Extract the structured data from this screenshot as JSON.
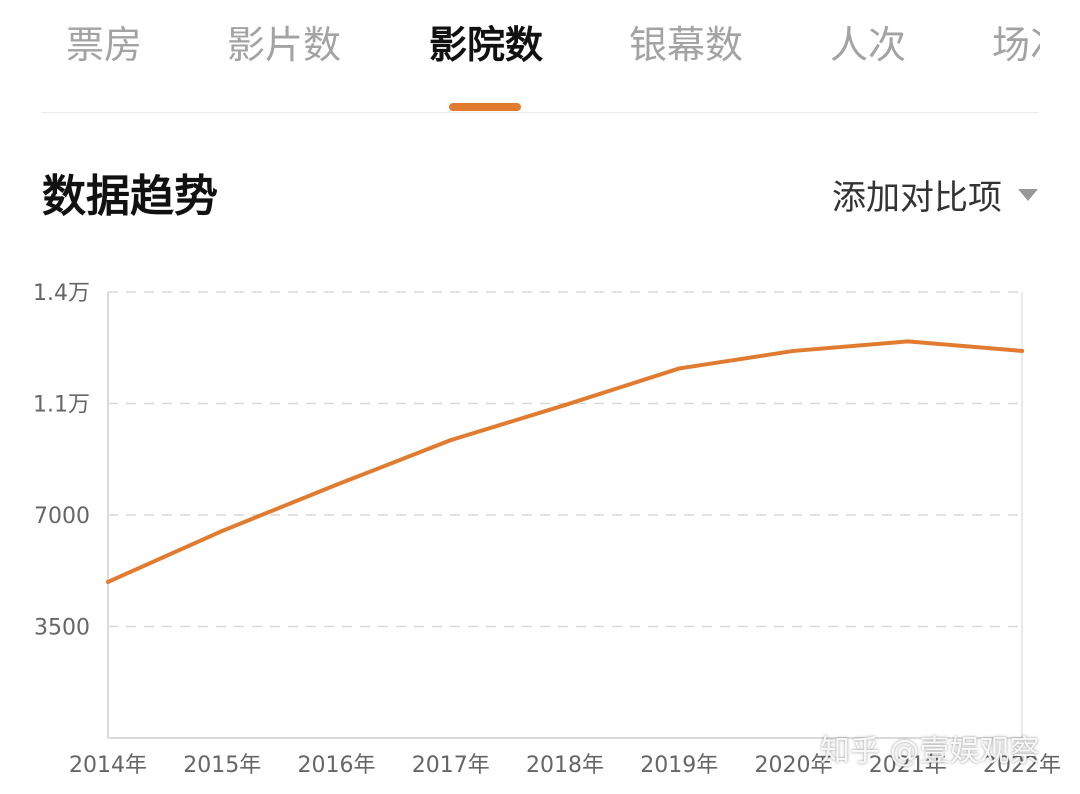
{
  "tabs": [
    {
      "label": "票房",
      "active": false
    },
    {
      "label": "影片数",
      "active": false
    },
    {
      "label": "影院数",
      "active": true
    },
    {
      "label": "银幕数",
      "active": false
    },
    {
      "label": "人次",
      "active": false
    },
    {
      "label": "场次",
      "active": false
    }
  ],
  "section": {
    "title": "数据趋势",
    "compare_label": "添加对比项"
  },
  "colors": {
    "accent": "#e07b30",
    "grid": "#d9d9d9",
    "axis_text": "#666666"
  },
  "chart_data": {
    "type": "line",
    "categories": [
      "2014年",
      "2015年",
      "2016年",
      "2017年",
      "2018年",
      "2019年",
      "2020年",
      "2021年",
      "2022年"
    ],
    "series": [
      {
        "values": [
          4900,
          6500,
          7950,
          9350,
          10450,
          11600,
          12150,
          12450,
          12150
        ]
      }
    ],
    "ylim": [
      0,
      14000
    ],
    "yticks": [
      {
        "value": 14000,
        "label": "1.4万"
      },
      {
        "value": 10500,
        "label": "1.1万"
      },
      {
        "value": 7000,
        "label": "7000"
      },
      {
        "value": 3500,
        "label": "3500"
      }
    ],
    "grid": true
  },
  "watermark": "知乎 @壹娱观察"
}
